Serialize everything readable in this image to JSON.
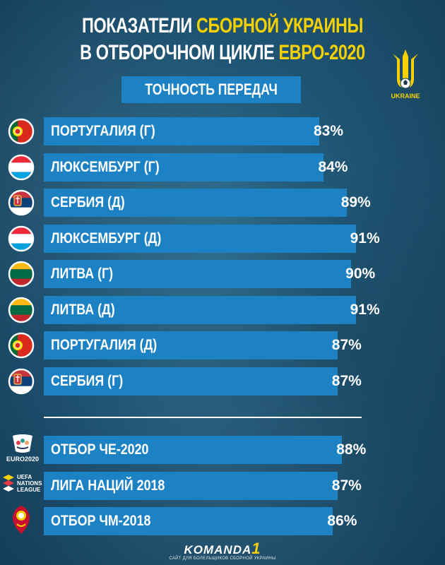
{
  "header": {
    "line1_white": "ПОКАЗАТЕЛИ",
    "line1_yellow": "СБОРНОЙ УКРАИНЫ",
    "line2_white": "В ОТБОРОЧНОМ ЦИКЛЕ",
    "line2_yellow": "ЕВРО-2020",
    "subtitle": "ТОЧНОСТЬ ПЕРЕДАЧ",
    "crest_label": "UKRAINE"
  },
  "colors": {
    "bar": "#1c82c4",
    "accent_yellow": "#f5d000",
    "text": "#ffffff"
  },
  "chart_data": {
    "type": "bar",
    "orientation": "horizontal",
    "title": "ТОЧНОСТЬ ПЕРЕДАЧ",
    "unit": "%",
    "groups": [
      {
        "categories": [
          "ПОРТУГАЛИЯ (Г)",
          "ЛЮКСЕМБУРГ (Г)",
          "СЕРБИЯ (Д)",
          "ЛЮКСЕМБУРГ (Д)",
          "ЛИТВА (Г)",
          "ЛИТВА (Д)",
          "ПОРТУГАЛИЯ (Д)",
          "СЕРБИЯ (Г)"
        ],
        "values": [
          83,
          84,
          89,
          91,
          90,
          91,
          87,
          87
        ],
        "labels": [
          "83%",
          "84%",
          "89%",
          "91%",
          "90%",
          "91%",
          "87%",
          "87%"
        ],
        "icons": [
          "portugal-flag-icon",
          "luxembourg-flag-icon",
          "serbia-flag-icon",
          "luxembourg-flag-icon",
          "lithuania-flag-icon",
          "lithuania-flag-icon",
          "portugal-flag-icon",
          "serbia-flag-icon"
        ]
      },
      {
        "categories": [
          "ОТБОР ЧЕ-2020",
          "ЛИГА НАЦИЙ 2018",
          "ОТБОР ЧМ-2018"
        ],
        "values": [
          88,
          87,
          86
        ],
        "labels": [
          "88%",
          "87%",
          "86%"
        ],
        "icons": [
          "euro2020-logo-icon",
          "nations-league-logo-icon",
          "worldcup2018-logo-icon"
        ]
      }
    ]
  },
  "logos": {
    "euro_text": "EURO2020",
    "nations_text": [
      "UEFA",
      "NATIONS",
      "LEAGUE"
    ]
  },
  "footer": {
    "brand": "KOMANDA",
    "brand_num": "1",
    "tagline": "САЙТ ДЛЯ БОЛЕЛЬЩИКОВ СБОРНОЙ УКРАИНЫ"
  }
}
